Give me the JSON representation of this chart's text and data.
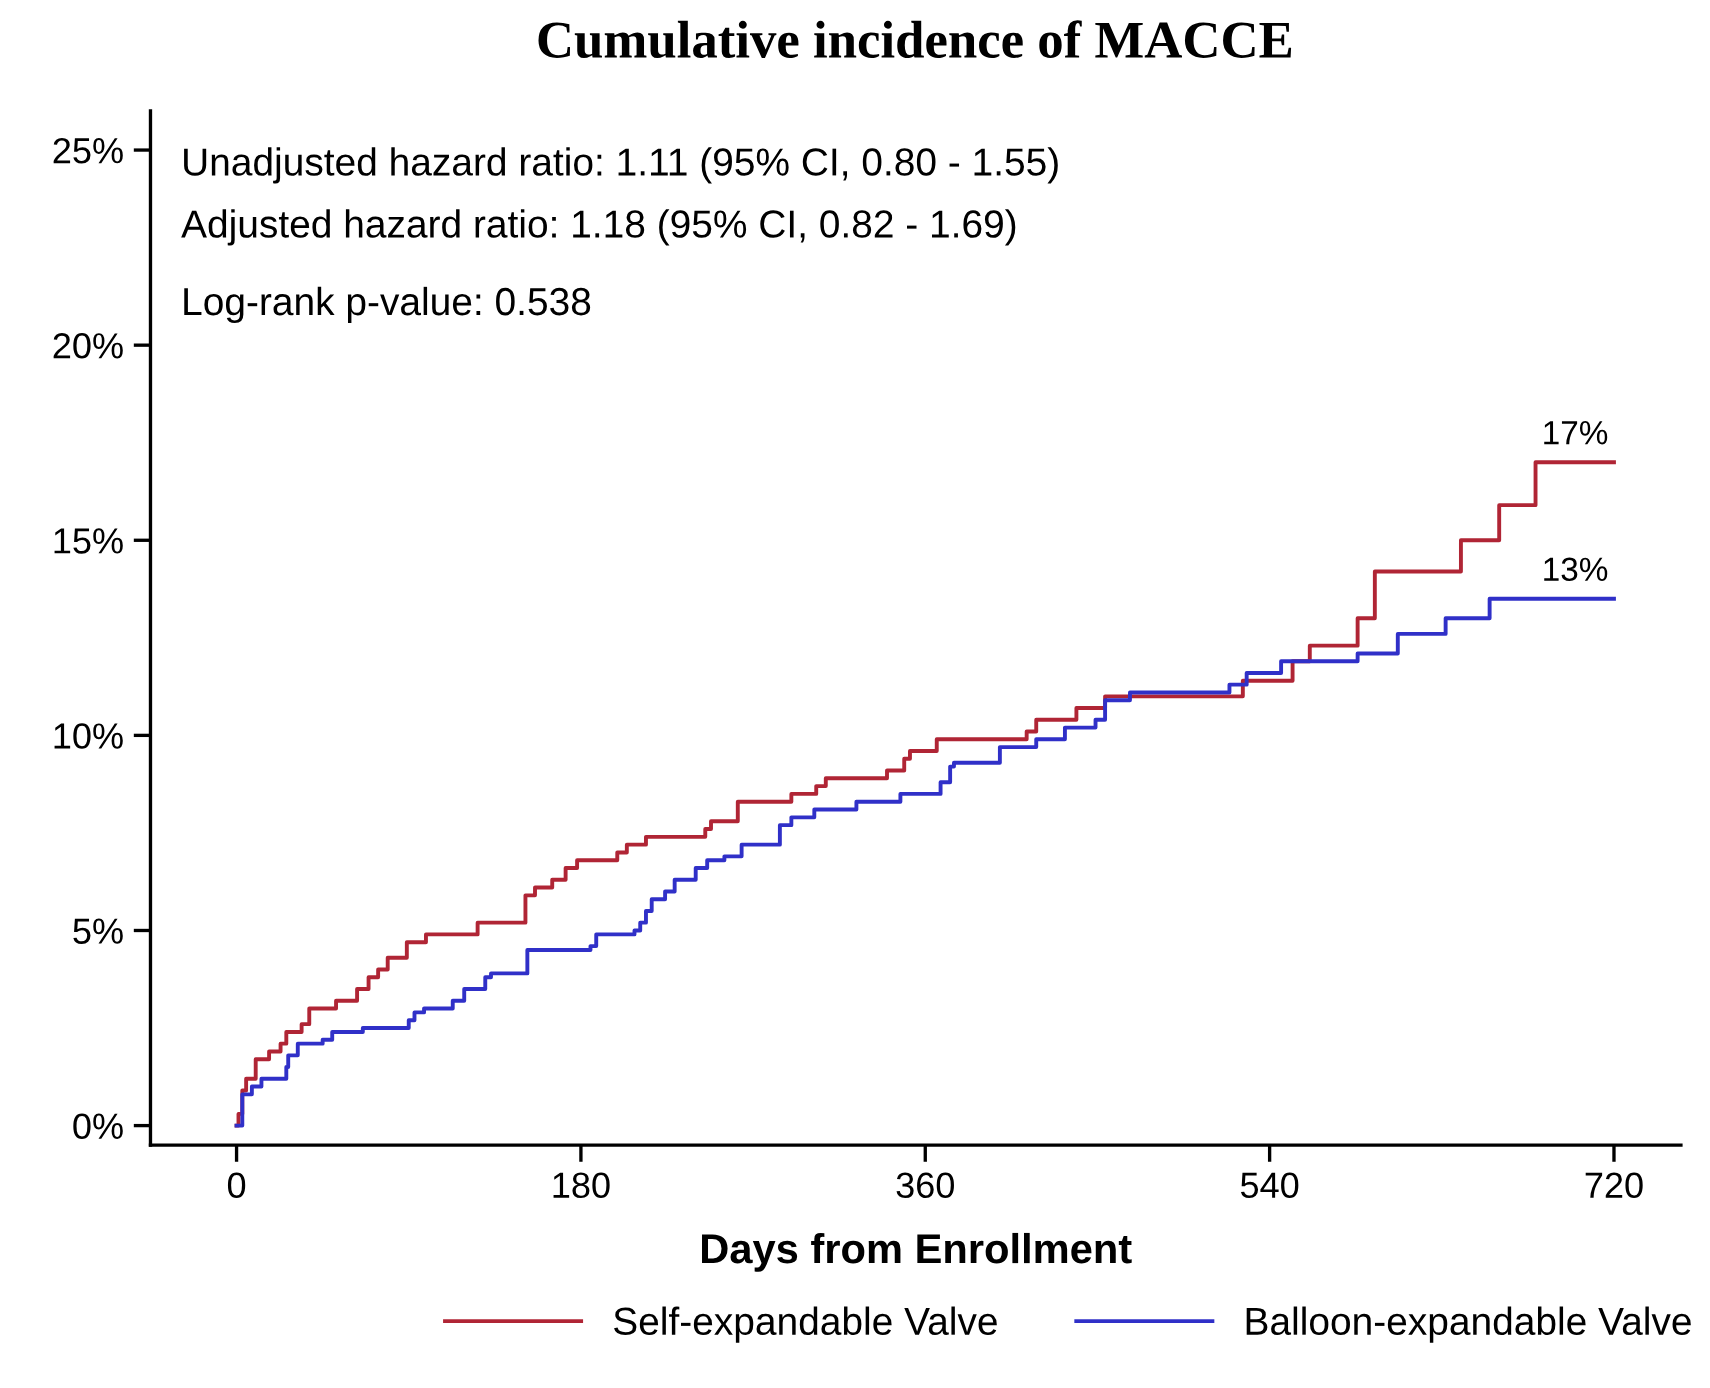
{
  "chart_data": {
    "type": "step",
    "title": "Cumulative incidence of MACCE",
    "xlabel": "Days from Enrollment",
    "xlim": [
      -45,
      755
    ],
    "xticks": [
      0,
      180,
      360,
      540,
      720
    ],
    "ylim": [
      -0.5,
      26
    ],
    "yticks": [
      {
        "value": 0,
        "label": "0%"
      },
      {
        "value": 5,
        "label": "5%"
      },
      {
        "value": 10,
        "label": "10%"
      },
      {
        "value": 15,
        "label": "15%"
      },
      {
        "value": 20,
        "label": "20%"
      },
      {
        "value": 25,
        "label": "25%"
      }
    ],
    "series": [
      {
        "name": "Self-expandable Valve",
        "color": "#b02535",
        "x": [
          0,
          1,
          3,
          5,
          10,
          17,
          23,
          26,
          34,
          38,
          52,
          63,
          69,
          74,
          79,
          89,
          99,
          126,
          151,
          156,
          165,
          172,
          178,
          199,
          204,
          214,
          245,
          248,
          262,
          290,
          303,
          308,
          340,
          349,
          352,
          366,
          413,
          418,
          439,
          454,
          526,
          552,
          561,
          586,
          595,
          640,
          660,
          679,
          720
        ],
        "values": [
          0,
          0.3,
          0.9,
          1.2,
          1.7,
          1.9,
          2.1,
          2.4,
          2.6,
          3.0,
          3.2,
          3.5,
          3.8,
          4.0,
          4.3,
          4.7,
          4.9,
          5.2,
          5.9,
          6.1,
          6.3,
          6.6,
          6.8,
          7.0,
          7.2,
          7.4,
          7.6,
          7.8,
          8.3,
          8.5,
          8.7,
          8.9,
          9.1,
          9.4,
          9.6,
          9.9,
          10.1,
          10.4,
          10.7,
          11.0,
          11.4,
          11.9,
          12.3,
          13.0,
          14.2,
          15.0,
          15.9,
          17.0,
          17.0
        ]
      },
      {
        "name": "Balloon-expandable Valve",
        "color": "#3030c8",
        "x": [
          0,
          3,
          8,
          13,
          26,
          27,
          32,
          45,
          50,
          66,
          90,
          93,
          98,
          113,
          119,
          130,
          133,
          152,
          185,
          188,
          208,
          211,
          214,
          217,
          224,
          229,
          240,
          246,
          255,
          264,
          284,
          290,
          302,
          324,
          347,
          368,
          373,
          375,
          399,
          418,
          433,
          449,
          454,
          467,
          519,
          528,
          546,
          586,
          607,
          632,
          655,
          720
        ],
        "values": [
          0,
          0.8,
          1.0,
          1.2,
          1.5,
          1.8,
          2.1,
          2.2,
          2.4,
          2.5,
          2.7,
          2.9,
          3.0,
          3.2,
          3.5,
          3.8,
          3.9,
          4.5,
          4.6,
          4.9,
          5.0,
          5.2,
          5.5,
          5.8,
          6.0,
          6.3,
          6.6,
          6.8,
          6.9,
          7.2,
          7.7,
          7.9,
          8.1,
          8.3,
          8.5,
          8.8,
          9.2,
          9.3,
          9.7,
          9.9,
          10.2,
          10.4,
          10.9,
          11.1,
          11.3,
          11.6,
          11.9,
          12.1,
          12.6,
          13.0,
          13.5,
          13.5
        ]
      }
    ],
    "annotations": [
      "Unadjusted hazard ratio: 1.11 (95% CI, 0.80 - 1.55)",
      "Adjusted hazard ratio: 1.18 (95% CI, 0.82 - 1.69)",
      "Log-rank p-value: 0.538",
      {
        "text": "17%",
        "x": 720,
        "y": 17.0
      },
      {
        "text": "13%",
        "x": 720,
        "y": 13.5
      }
    ],
    "grid": false,
    "legend": "bottom",
    "marker": "none",
    "line_style": "solid"
  }
}
